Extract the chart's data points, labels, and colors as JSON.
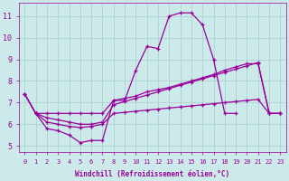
{
  "bg_color": "#cceaea",
  "line_color": "#990099",
  "grid_color": "#aacccc",
  "xlabel": "Windchill (Refroidissement éolien,°C)",
  "xlabel_color": "#990099",
  "ylabel_color": "#990099",
  "tick_color": "#990099",
  "ylim": [
    4.7,
    11.6
  ],
  "xlim": [
    -0.5,
    23.5
  ],
  "yticks": [
    5,
    6,
    7,
    8,
    9,
    10,
    11
  ],
  "xticks": [
    0,
    1,
    2,
    3,
    4,
    5,
    6,
    7,
    8,
    9,
    10,
    11,
    12,
    13,
    14,
    15,
    16,
    17,
    18,
    19,
    20,
    21,
    22,
    23
  ],
  "line1_x": [
    0,
    1,
    2,
    3,
    4,
    5,
    6,
    7,
    8,
    9,
    10,
    11,
    12,
    13,
    14,
    15,
    16,
    17,
    18,
    19,
    20,
    21,
    22,
    23
  ],
  "line1_y": [
    7.4,
    6.5,
    5.8,
    5.7,
    5.5,
    5.15,
    5.25,
    5.25,
    7.1,
    7.1,
    8.5,
    9.6,
    9.5,
    11.0,
    11.15,
    11.15,
    10.6,
    9.0,
    6.5,
    6.5,
    null,
    null,
    null,
    null
  ],
  "line2_x": [
    0,
    1,
    2,
    3,
    4,
    5,
    6,
    7,
    8,
    9,
    10,
    11,
    12,
    13,
    14,
    15,
    16,
    17,
    18,
    19,
    20,
    21,
    22,
    23
  ],
  "line2_y": [
    7.4,
    6.5,
    6.5,
    6.5,
    6.5,
    6.5,
    6.5,
    6.5,
    7.1,
    7.2,
    7.3,
    7.5,
    7.6,
    7.7,
    7.85,
    8.0,
    8.15,
    8.3,
    8.5,
    8.65,
    8.8,
    8.8,
    6.5,
    6.5
  ],
  "line3_x": [
    0,
    1,
    2,
    3,
    4,
    5,
    6,
    7,
    8,
    9,
    10,
    11,
    12,
    13,
    14,
    15,
    16,
    17,
    18,
    19,
    20,
    21,
    22,
    23
  ],
  "line3_y": [
    7.4,
    6.5,
    6.3,
    6.2,
    6.1,
    6.0,
    6.0,
    6.1,
    6.9,
    7.05,
    7.2,
    7.35,
    7.5,
    7.65,
    7.8,
    7.95,
    8.1,
    8.25,
    8.4,
    8.55,
    8.7,
    8.85,
    6.5,
    6.5
  ],
  "line4_x": [
    1,
    2,
    3,
    4,
    5,
    6,
    7,
    8,
    9,
    10,
    11,
    12,
    13,
    14,
    15,
    16,
    17,
    18,
    19,
    20,
    21,
    22,
    23
  ],
  "line4_y": [
    6.5,
    6.1,
    6.0,
    5.9,
    5.85,
    5.9,
    6.0,
    6.5,
    6.55,
    6.6,
    6.65,
    6.7,
    6.75,
    6.8,
    6.85,
    6.9,
    6.95,
    7.0,
    7.05,
    7.1,
    7.15,
    6.5,
    6.5
  ]
}
